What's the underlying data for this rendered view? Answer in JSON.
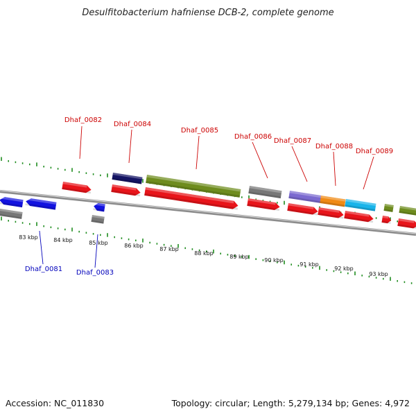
{
  "title": "Desulfitobacterium hafniense DCB-2, complete genome",
  "footer": {
    "accession": "Accession: NC_011830",
    "summary": "Topology: circular; Length: 5,279,134 bp; Genes: 4,972"
  },
  "colors": {
    "forward_cds": "#e8141a",
    "reverse_cds": "#1313e0",
    "pseudo": "#777777",
    "backbone": "#8c8c8c",
    "ticks": "#1e8c1e",
    "forward_label": "#cc0000",
    "reverse_label": "#0000bb",
    "olive": "#6e8c1e",
    "navy": "#141464",
    "lavender": "#7b6ad0",
    "orange": "#f08a14",
    "cyan": "#19b4ea"
  },
  "scale": {
    "ticks": [
      {
        "label": "83 kbp"
      },
      {
        "label": "84 kbp"
      },
      {
        "label": "85 kbp"
      },
      {
        "label": "86 kbp"
      },
      {
        "label": "87 kbp"
      },
      {
        "label": "88 kbp"
      },
      {
        "label": "89 kbp"
      },
      {
        "label": "90 kbp"
      },
      {
        "label": "91 kbp"
      },
      {
        "label": "92 kbp"
      },
      {
        "label": "93 kbp"
      }
    ]
  },
  "gene_labels": {
    "forward": [
      "Dhaf_0082",
      "Dhaf_0084",
      "Dhaf_0085",
      "Dhaf_0086",
      "Dhaf_0087",
      "Dhaf_0088",
      "Dhaf_0089"
    ],
    "reverse": [
      "Dhaf_0081",
      "Dhaf_0083"
    ]
  }
}
